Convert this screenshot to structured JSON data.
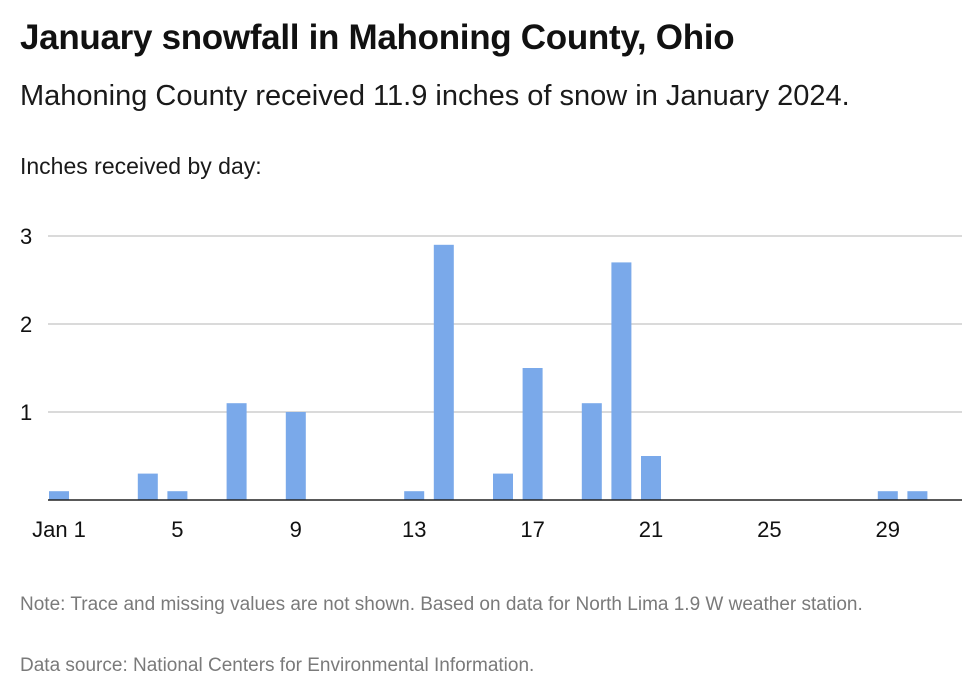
{
  "title": "January snowfall in Mahoning County, Ohio",
  "subtitle": "Mahoning County received 11.9 inches of snow in January 2024.",
  "note": "Note: Trace and missing values are not shown. Based on data for North Lima 1.9 W weather station.",
  "source": "Data source: National Centers for Environmental Information.",
  "chart_data": {
    "type": "bar",
    "ylabel": "Inches received by day:",
    "xlabel": "",
    "x": [
      1,
      2,
      3,
      4,
      5,
      6,
      7,
      8,
      9,
      10,
      11,
      12,
      13,
      14,
      15,
      16,
      17,
      18,
      19,
      20,
      21,
      22,
      23,
      24,
      25,
      26,
      27,
      28,
      29,
      30,
      31
    ],
    "values": [
      0.1,
      0,
      0,
      0.3,
      0.1,
      0,
      1.1,
      0,
      1.0,
      0,
      0,
      0,
      0.1,
      2.9,
      0,
      0.3,
      1.5,
      0,
      1.1,
      2.7,
      0.5,
      0,
      0,
      0,
      0,
      0,
      0,
      0,
      0.1,
      0.1,
      0
    ],
    "xlim": [
      1,
      31
    ],
    "ylim": [
      0,
      3
    ],
    "x_ticks": [
      1,
      5,
      9,
      13,
      17,
      21,
      25,
      29
    ],
    "x_tick_labels": [
      "Jan 1",
      "5",
      "9",
      "13",
      "17",
      "21",
      "25",
      "29"
    ],
    "y_ticks": [
      1,
      2,
      3
    ],
    "y_tick_labels": [
      "1",
      "2",
      "3"
    ],
    "grid": true,
    "bar_color": "#7aa9ea",
    "grid_color": "#b5b5b5"
  }
}
